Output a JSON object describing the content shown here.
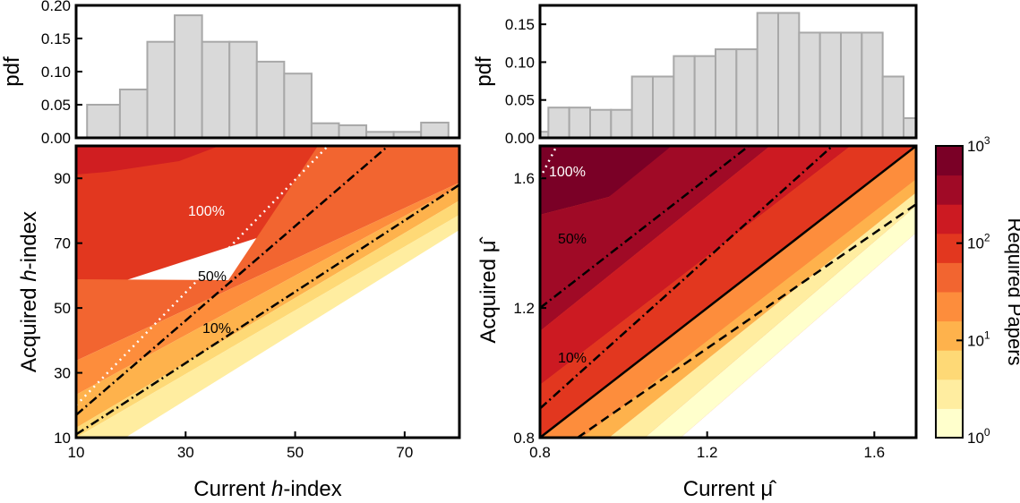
{
  "chart_data": [
    {
      "type": "bar",
      "panel": "top-left histogram",
      "ylabel": "pdf",
      "xlim": [
        10,
        80
      ],
      "ylim": [
        0,
        0.2
      ],
      "yticks": [
        "0.00",
        "0.05",
        "0.10",
        "0.15",
        "0.20"
      ],
      "bin_edges": [
        12,
        18,
        23,
        28,
        33,
        38,
        43,
        48,
        53,
        58,
        63,
        68,
        73,
        78
      ],
      "values": [
        0.05,
        0.073,
        0.145,
        0.185,
        0.145,
        0.145,
        0.115,
        0.097,
        0.022,
        0.019,
        0.009,
        0.009,
        0.023
      ],
      "bar_color": "#d9d9d9",
      "edge_color": "#a8a8a8"
    },
    {
      "type": "bar",
      "panel": "top-right histogram",
      "ylabel": "pdf",
      "xlim": [
        0.8,
        1.7
      ],
      "ylim": [
        0,
        0.175
      ],
      "yticks": [
        "0.00",
        "0.05",
        "0.10",
        "0.15"
      ],
      "bin_edges": [
        0.8,
        0.82,
        0.87,
        0.92,
        0.97,
        1.02,
        1.07,
        1.12,
        1.17,
        1.22,
        1.27,
        1.32,
        1.37,
        1.42,
        1.47,
        1.52,
        1.57,
        1.62,
        1.67,
        1.7
      ],
      "values": [
        0.008,
        0.04,
        0.04,
        0.037,
        0.037,
        0.081,
        0.081,
        0.108,
        0.108,
        0.117,
        0.117,
        0.165,
        0.165,
        0.139,
        0.139,
        0.139,
        0.139,
        0.081,
        0.026
      ],
      "bar_color": "#d9d9d9",
      "edge_color": "#a8a8a8"
    },
    {
      "type": "heatmap",
      "panel": "bottom-left",
      "xlabel_pre": "Current ",
      "xlabel_it": "h",
      "xlabel_post": "-index",
      "ylabel_pre": "Acquired ",
      "ylabel_it": "h",
      "ylabel_post": "-index",
      "xlim": [
        10,
        80
      ],
      "ylim": [
        10,
        100
      ],
      "xticks": [
        "10",
        "30",
        "50",
        "70"
      ],
      "yticks": [
        "10",
        "30",
        "50",
        "70",
        "90"
      ],
      "quantity": "Required Papers (log scale, 10^0 to 10^3)",
      "contours": [
        {
          "label": "100%",
          "style": "dotted",
          "color": "#ffffff",
          "x": [
            10,
            56
          ],
          "y": [
            20,
            100
          ]
        },
        {
          "label": "50%",
          "style": "dashdot",
          "color": "#000000",
          "x": [
            10,
            67
          ],
          "y": [
            17,
            100
          ]
        },
        {
          "label": "10%",
          "style": "dashdot",
          "color": "#000000",
          "x": [
            10,
            80
          ],
          "y": [
            11,
            88
          ]
        }
      ]
    },
    {
      "type": "heatmap",
      "panel": "bottom-right",
      "xlabel": "Current μ̂",
      "ylabel": "Acquired μ̂",
      "xlim": [
        0.8,
        1.7
      ],
      "ylim": [
        0.8,
        1.7
      ],
      "xticks": [
        "0.8",
        "1.2",
        "1.6"
      ],
      "yticks": [
        "0.8",
        "1.2",
        "1.6"
      ],
      "quantity": "Required Papers (log scale, 10^0 to 10^3)",
      "reference_lines": [
        {
          "style": "solid",
          "x": [
            0.8,
            1.7
          ],
          "y": [
            0.8,
            1.7
          ]
        },
        {
          "style": "dashed",
          "x": [
            0.89,
            1.7
          ],
          "y": [
            0.8,
            1.52
          ]
        }
      ],
      "contours": [
        {
          "label": "100%",
          "style": "dotted",
          "color": "#ffffff",
          "x": [
            0.8,
            0.84
          ],
          "y": [
            1.6,
            1.7
          ]
        },
        {
          "label": "50%",
          "style": "dashdot",
          "color": "#000000",
          "x": [
            0.8,
            1.3
          ],
          "y": [
            1.2,
            1.7
          ]
        },
        {
          "label": "10%",
          "style": "dashdot",
          "color": "#000000",
          "x": [
            0.8,
            1.5
          ],
          "y": [
            0.89,
            1.7
          ]
        }
      ]
    }
  ],
  "colorbar": {
    "label": "Required Papers",
    "ticks": [
      {
        "base": "10",
        "exp": "0"
      },
      {
        "base": "10",
        "exp": "1"
      },
      {
        "base": "10",
        "exp": "2"
      },
      {
        "base": "10",
        "exp": "3"
      }
    ],
    "colors": [
      "#ffffcc",
      "#ffeda0",
      "#fed976",
      "#feb24c",
      "#fd8d3c",
      "#f26530",
      "#e2371f",
      "#cc1a22",
      "#a00a26",
      "#7a0026"
    ]
  }
}
